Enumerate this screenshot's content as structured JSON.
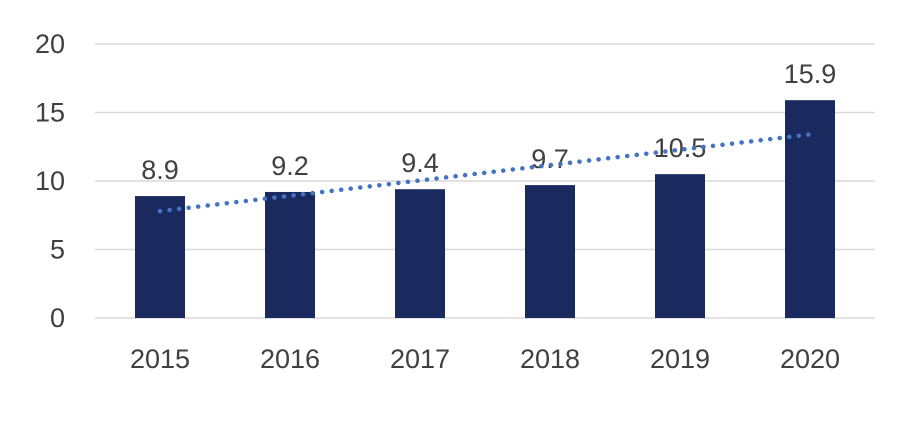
{
  "chart_data": {
    "type": "bar",
    "title": "",
    "xlabel": "",
    "ylabel": "",
    "categories": [
      "2015",
      "2016",
      "2017",
      "2018",
      "2019",
      "2020"
    ],
    "values": [
      8.9,
      9.2,
      9.4,
      9.7,
      10.5,
      15.9
    ],
    "data_labels": [
      "8.9",
      "9.2",
      "9.4",
      "9.7",
      "10.5",
      "15.9"
    ],
    "ylim": [
      0,
      20
    ],
    "yticks": [
      0,
      5,
      10,
      15,
      20
    ],
    "grid": true,
    "legend": false,
    "trendline": {
      "type": "linear-dotted",
      "start_value": 7.8,
      "end_value": 13.4
    },
    "colors": {
      "bar": "#1a2a5e",
      "trendline": "#4472c4",
      "gridline": "#d9d9d9",
      "text": "#404040",
      "background": "#ffffff"
    }
  }
}
